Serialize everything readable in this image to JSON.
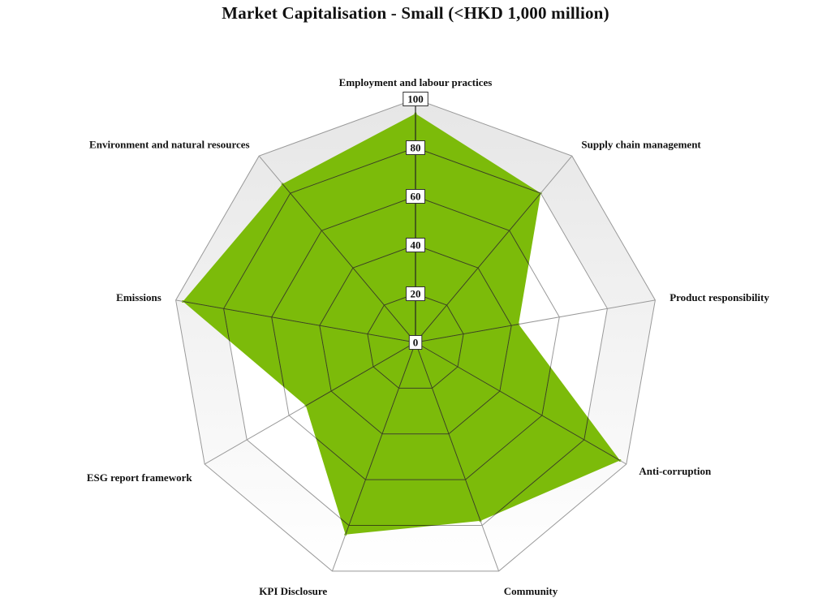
{
  "chart_data": {
    "type": "radar",
    "title": "Market Capitalisation - Small (<HKD 1,000 million)",
    "axes": [
      "Employment and labour practices",
      "Supply chain management",
      "Product responsibility",
      "Anti-corruption",
      "Community",
      "KPI Disclosure",
      "ESG report framework",
      "Emissions",
      "Environment and natural resources"
    ],
    "values": [
      94,
      80,
      43,
      97,
      78,
      84,
      52,
      97,
      85
    ],
    "rlim": [
      0,
      100
    ],
    "ticks": [
      0,
      20,
      40,
      60,
      80,
      100
    ],
    "grid": true,
    "colors": {
      "fill": "#7cbb0a",
      "grid": "#999999",
      "inner_grid": "#3a4a10",
      "axis": "#222222",
      "band": "#eeeeee"
    }
  }
}
